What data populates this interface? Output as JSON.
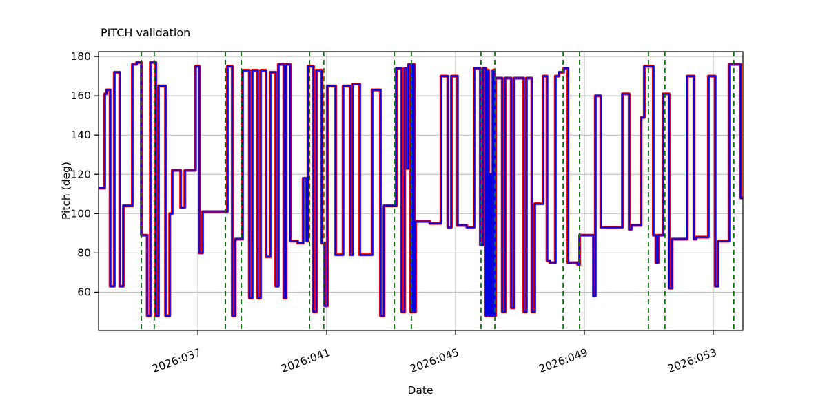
{
  "chart_data": {
    "type": "line",
    "step_mode": "post",
    "title": "PITCH validation",
    "xlabel": "Date",
    "ylabel": "Pitch (deg)",
    "xlim": [
      33.92,
      53.92
    ],
    "ylim": [
      40.5,
      182.5
    ],
    "grid": true,
    "legend": "none",
    "x_ticks": [
      {
        "value": 37,
        "label": "2026:037"
      },
      {
        "value": 41,
        "label": "2026:041"
      },
      {
        "value": 45,
        "label": "2026:045"
      },
      {
        "value": 49,
        "label": "2026:049"
      },
      {
        "value": 53,
        "label": "2026:053"
      }
    ],
    "y_ticks": [
      {
        "value": 60,
        "label": "60"
      },
      {
        "value": 80,
        "label": "80"
      },
      {
        "value": 100,
        "label": "100"
      },
      {
        "value": 120,
        "label": "120"
      },
      {
        "value": 140,
        "label": "140"
      },
      {
        "value": 160,
        "label": "160"
      },
      {
        "value": 180,
        "label": "180"
      }
    ],
    "colors": {
      "grid": "#b8b8b8",
      "axis": "#000000"
    },
    "line_styles": [
      {
        "name": "reference-line",
        "color": "#ff0000",
        "width": 4.2
      },
      {
        "name": "validated-line",
        "color": "#0000e6",
        "width": 2.2
      }
    ],
    "vlines": {
      "color": "#007d00",
      "dash": [
        7,
        5
      ],
      "positions": [
        35.25,
        35.65,
        37.86,
        38.35,
        40.47,
        40.91,
        43.1,
        43.63,
        45.79,
        46.22,
        48.34,
        48.85,
        50.99,
        51.5,
        53.64
      ]
    },
    "series": {
      "t": [
        33.92,
        34.11,
        34.17,
        34.28,
        34.41,
        34.58,
        34.69,
        34.97,
        35.1,
        35.25,
        35.43,
        35.53,
        35.7,
        35.78,
        36.0,
        36.13,
        36.21,
        36.47,
        36.6,
        36.93,
        37.05,
        37.15,
        37.92,
        38.07,
        38.16,
        38.39,
        38.6,
        38.69,
        38.86,
        38.95,
        39.12,
        39.25,
        39.42,
        39.5,
        39.67,
        39.74,
        39.87,
        40.1,
        40.27,
        40.38,
        40.42,
        40.59,
        40.68,
        40.85,
        40.94,
        41.02,
        41.28,
        41.51,
        41.73,
        41.81,
        42.03,
        42.41,
        42.67,
        42.78,
        43.16,
        43.33,
        43.42,
        43.48,
        43.54,
        43.61,
        43.67,
        43.72,
        43.76,
        44.2,
        44.55,
        44.76,
        44.87,
        45.06,
        45.35,
        45.58,
        45.77,
        45.86,
        45.94,
        45.98,
        46.03,
        46.07,
        46.11,
        46.16,
        46.2,
        46.24,
        46.45,
        46.54,
        46.73,
        46.82,
        47.12,
        47.2,
        47.37,
        47.46,
        47.72,
        47.84,
        47.93,
        48.1,
        48.21,
        48.36,
        48.49,
        48.79,
        48.85,
        49.28,
        49.34,
        49.51,
        50.18,
        50.39,
        50.46,
        50.76,
        50.86,
        51.14,
        51.22,
        51.29,
        51.44,
        51.63,
        51.72,
        52.19,
        52.4,
        52.47,
        52.85,
        53.06,
        53.15,
        53.49,
        53.85
      ],
      "v": [
        113,
        161,
        163,
        63,
        172,
        63,
        104,
        176,
        177,
        89,
        48,
        177,
        48,
        165,
        48,
        100,
        122,
        103,
        122,
        175,
        80,
        101,
        175,
        48,
        87,
        173,
        57,
        173,
        57,
        173,
        78,
        172,
        63,
        176,
        57,
        176,
        86,
        85,
        118,
        86,
        175,
        50,
        173,
        85,
        53,
        165,
        79,
        165,
        79,
        166,
        79,
        163,
        48,
        104,
        174,
        50,
        174,
        123,
        176,
        50,
        176,
        50,
        96,
        95,
        170,
        93,
        170,
        94,
        93,
        174,
        84,
        174,
        48,
        173,
        48,
        120,
        48,
        173,
        48,
        169,
        50,
        169,
        52,
        169,
        50,
        169,
        50,
        105,
        170,
        76,
        75,
        170,
        172,
        174,
        75,
        74,
        89,
        58,
        160,
        93,
        161,
        92,
        94,
        149,
        175,
        89,
        75,
        89,
        161,
        62,
        87,
        170,
        87,
        88,
        170,
        63,
        86,
        176,
        108
      ]
    }
  }
}
